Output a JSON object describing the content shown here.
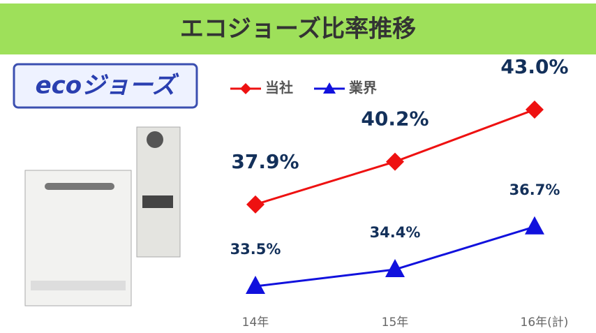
{
  "chart_data": {
    "type": "line",
    "title": "エコジョーズ比率推移",
    "logo": "ecoジョーズ",
    "categories": [
      "14年",
      "15年",
      "16年(計)"
    ],
    "series": [
      {
        "name": "当社",
        "color": "#ee1111",
        "marker": "diamond",
        "values": [
          37.9,
          40.2,
          43.0
        ],
        "value_labels": [
          "37.9%",
          "40.2%",
          "43.0%"
        ]
      },
      {
        "name": "業界",
        "color": "#1111dd",
        "marker": "triangle",
        "values": [
          33.5,
          34.4,
          36.7
        ],
        "value_labels": [
          "33.5%",
          "34.4%",
          "36.7%"
        ]
      }
    ]
  }
}
